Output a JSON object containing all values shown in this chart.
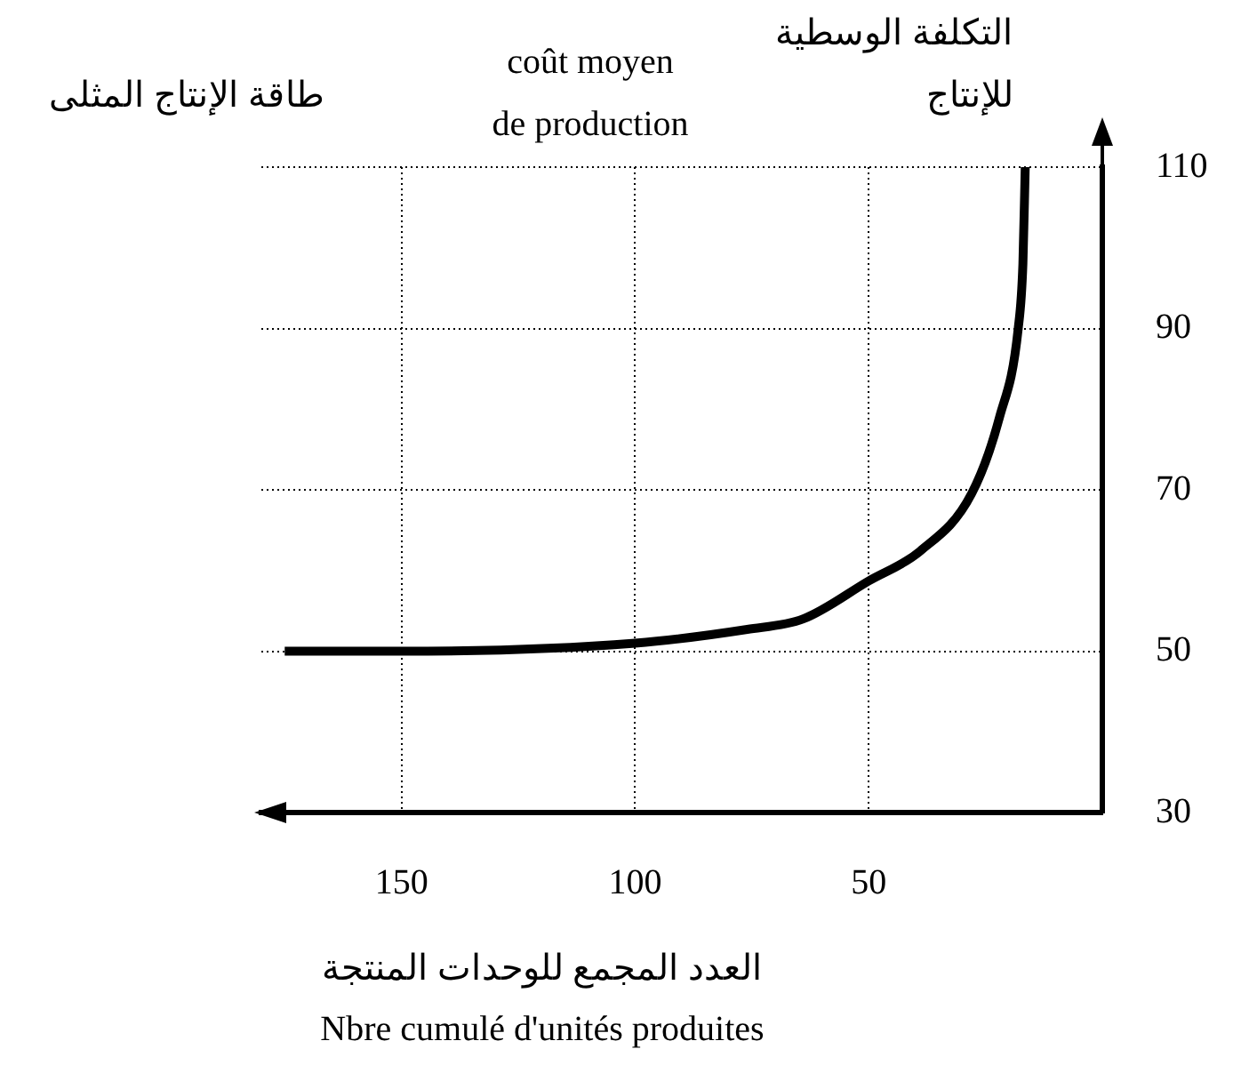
{
  "chart_data": {
    "type": "line",
    "xlabel": "العدد المجمع للوحدات المنتجة\nNbre cumulé d'unités produites",
    "ylabel": "coût moyen\nde production",
    "annotations": [
      "التكلفة الوسطية\nللإنتاج",
      "طاقة الإنتاج المثلى"
    ],
    "x": [
      175,
      150,
      100,
      76,
      64,
      50,
      39,
      28,
      22,
      18,
      17,
      16.5
    ],
    "series": [
      {
        "color": "#000000",
        "values": [
          50,
          50,
          51,
          52.7,
          54,
          58.7,
          62.4,
          69.5,
          79,
          90,
          98,
          110
        ]
      }
    ],
    "xlim": [
      180,
      0
    ],
    "xticks": [
      50,
      100,
      150
    ],
    "ylim": [
      30,
      110
    ],
    "yticks": [
      30,
      50,
      70,
      90,
      110
    ],
    "grid": true,
    "line_style": "solid",
    "marker": "none"
  }
}
